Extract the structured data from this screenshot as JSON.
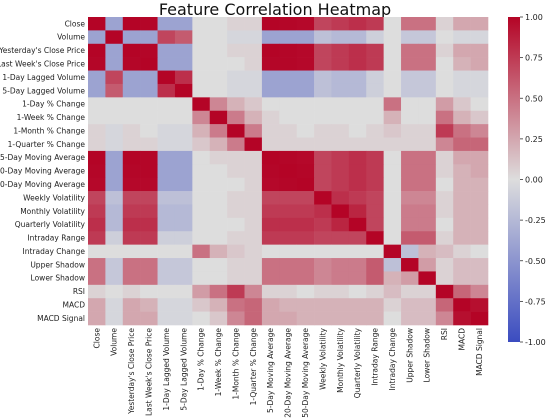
{
  "chart_data": {
    "type": "heatmap",
    "title": "Feature Correlation Heatmap",
    "labels": [
      "Close",
      "Volume",
      "Yesterday's Close Price",
      "Last Week's Close Price",
      "1-Day Lagged Volume",
      "5-Day Lagged Volume",
      "1-Day % Change",
      "1-Week % Change",
      "1-Month % Change",
      "1-Quarter % Change",
      "5-Day Moving Average",
      "20-Day Moving Average",
      "50-Day Moving Average",
      "Weekly Volatility",
      "Monthly Volatility",
      "Quarterly Volatility",
      "Intraday Range",
      "Intraday Change",
      "Upper Shadow",
      "Lower Shadow",
      "RSI",
      "MACD",
      "MACD Signal"
    ],
    "matrix": [
      [
        1.0,
        -0.4,
        1.0,
        0.99,
        -0.4,
        -0.4,
        0.0,
        0.0,
        0.05,
        0.05,
        1.0,
        0.99,
        0.98,
        0.7,
        0.75,
        0.8,
        0.75,
        0.0,
        0.5,
        0.5,
        0.05,
        0.25,
        0.25
      ],
      [
        -0.4,
        1.0,
        -0.4,
        -0.4,
        0.7,
        0.6,
        0.0,
        0.0,
        -0.05,
        -0.05,
        -0.4,
        -0.4,
        -0.4,
        -0.2,
        -0.25,
        -0.25,
        -0.1,
        0.0,
        -0.15,
        -0.15,
        0.0,
        -0.05,
        -0.05
      ],
      [
        1.0,
        -0.4,
        1.0,
        0.99,
        -0.4,
        -0.4,
        0.0,
        0.0,
        0.05,
        0.05,
        1.0,
        0.99,
        0.98,
        0.7,
        0.75,
        0.8,
        0.75,
        0.0,
        0.5,
        0.5,
        0.05,
        0.25,
        0.25
      ],
      [
        0.99,
        -0.4,
        0.99,
        1.0,
        -0.4,
        -0.4,
        0.0,
        0.0,
        0.0,
        0.05,
        0.99,
        0.99,
        0.98,
        0.7,
        0.75,
        0.8,
        0.75,
        0.0,
        0.5,
        0.5,
        0.0,
        0.2,
        0.25
      ],
      [
        -0.4,
        0.7,
        -0.4,
        -0.4,
        1.0,
        0.8,
        0.0,
        0.0,
        -0.05,
        -0.05,
        -0.4,
        -0.4,
        -0.4,
        -0.2,
        -0.25,
        -0.25,
        -0.1,
        0.0,
        -0.15,
        -0.15,
        0.0,
        -0.05,
        -0.05
      ],
      [
        -0.4,
        0.6,
        -0.4,
        -0.4,
        0.8,
        1.0,
        0.0,
        0.0,
        -0.05,
        -0.05,
        -0.4,
        -0.4,
        -0.4,
        -0.2,
        -0.25,
        -0.25,
        -0.1,
        0.0,
        -0.15,
        -0.15,
        0.0,
        -0.05,
        -0.05
      ],
      [
        0.0,
        0.0,
        0.0,
        0.0,
        0.0,
        0.0,
        1.0,
        0.4,
        0.2,
        0.1,
        0.0,
        0.0,
        0.0,
        0.0,
        0.0,
        0.0,
        0.0,
        0.5,
        0.0,
        0.0,
        0.3,
        0.1,
        0.0
      ],
      [
        0.0,
        0.0,
        0.0,
        0.0,
        0.0,
        0.0,
        0.4,
        1.0,
        0.45,
        0.2,
        0.05,
        0.0,
        0.0,
        0.0,
        0.0,
        0.0,
        0.0,
        0.2,
        0.0,
        0.0,
        0.5,
        0.2,
        0.1
      ],
      [
        0.05,
        -0.05,
        0.05,
        0.0,
        -0.05,
        -0.05,
        0.2,
        0.45,
        1.0,
        0.45,
        0.05,
        0.05,
        0.0,
        0.05,
        0.05,
        0.0,
        0.05,
        0.1,
        0.05,
        0.05,
        0.75,
        0.5,
        0.4
      ],
      [
        0.05,
        -0.05,
        0.05,
        0.05,
        -0.05,
        -0.05,
        0.1,
        0.2,
        0.45,
        1.0,
        0.05,
        0.05,
        0.05,
        0.05,
        0.05,
        0.05,
        0.05,
        0.05,
        0.05,
        0.05,
        0.4,
        0.55,
        0.55
      ],
      [
        1.0,
        -0.4,
        1.0,
        0.99,
        -0.4,
        -0.4,
        0.0,
        0.05,
        0.05,
        0.05,
        1.0,
        0.99,
        0.98,
        0.7,
        0.75,
        0.8,
        0.75,
        0.0,
        0.5,
        0.5,
        0.05,
        0.25,
        0.25
      ],
      [
        0.99,
        -0.4,
        0.99,
        0.99,
        -0.4,
        -0.4,
        0.0,
        0.0,
        0.05,
        0.05,
        0.99,
        1.0,
        0.99,
        0.7,
        0.75,
        0.8,
        0.75,
        0.0,
        0.5,
        0.5,
        0.05,
        0.2,
        0.25
      ],
      [
        0.98,
        -0.4,
        0.98,
        0.98,
        -0.4,
        -0.4,
        0.0,
        0.0,
        0.0,
        0.05,
        0.98,
        0.99,
        1.0,
        0.7,
        0.75,
        0.8,
        0.75,
        0.0,
        0.5,
        0.5,
        0.0,
        0.2,
        0.2
      ],
      [
        0.7,
        -0.2,
        0.7,
        0.7,
        -0.2,
        -0.2,
        0.0,
        0.0,
        0.05,
        0.05,
        0.7,
        0.7,
        0.7,
        1.0,
        0.8,
        0.75,
        0.7,
        0.0,
        0.4,
        0.4,
        0.05,
        0.2,
        0.2
      ],
      [
        0.75,
        -0.25,
        0.75,
        0.75,
        -0.25,
        -0.25,
        0.0,
        0.0,
        0.05,
        0.05,
        0.75,
        0.75,
        0.75,
        0.8,
        1.0,
        0.85,
        0.7,
        0.0,
        0.45,
        0.45,
        0.05,
        0.2,
        0.2
      ],
      [
        0.8,
        -0.25,
        0.8,
        0.8,
        -0.25,
        -0.25,
        0.0,
        0.0,
        0.0,
        0.05,
        0.8,
        0.8,
        0.8,
        0.75,
        0.85,
        1.0,
        0.7,
        0.0,
        0.45,
        0.45,
        0.0,
        0.2,
        0.2
      ],
      [
        0.75,
        -0.1,
        0.75,
        0.75,
        -0.1,
        -0.1,
        0.0,
        0.0,
        0.05,
        0.05,
        0.75,
        0.75,
        0.75,
        0.7,
        0.7,
        0.7,
        1.0,
        0.0,
        0.6,
        0.6,
        0.05,
        0.2,
        0.2
      ],
      [
        0.0,
        0.0,
        0.0,
        0.0,
        0.0,
        0.0,
        0.5,
        0.2,
        0.1,
        0.05,
        0.0,
        0.0,
        0.0,
        0.0,
        0.0,
        0.0,
        0.0,
        1.0,
        -0.2,
        0.2,
        0.15,
        0.05,
        0.0
      ],
      [
        0.5,
        -0.15,
        0.5,
        0.5,
        -0.15,
        -0.15,
        0.0,
        0.0,
        0.05,
        0.05,
        0.5,
        0.5,
        0.5,
        0.4,
        0.45,
        0.45,
        0.6,
        -0.2,
        1.0,
        0.3,
        0.05,
        0.15,
        0.15
      ],
      [
        0.5,
        -0.15,
        0.5,
        0.5,
        -0.15,
        -0.15,
        0.0,
        0.0,
        0.05,
        0.05,
        0.5,
        0.5,
        0.5,
        0.4,
        0.45,
        0.45,
        0.6,
        0.2,
        0.3,
        1.0,
        0.05,
        0.15,
        0.15
      ],
      [
        0.05,
        0.0,
        0.05,
        0.0,
        0.0,
        0.0,
        0.3,
        0.5,
        0.75,
        0.4,
        0.05,
        0.05,
        0.0,
        0.05,
        0.05,
        0.0,
        0.05,
        0.15,
        0.05,
        0.05,
        1.0,
        0.55,
        0.4
      ],
      [
        0.25,
        -0.05,
        0.25,
        0.2,
        -0.05,
        -0.05,
        0.1,
        0.2,
        0.5,
        0.55,
        0.25,
        0.2,
        0.2,
        0.2,
        0.2,
        0.2,
        0.2,
        0.05,
        0.15,
        0.15,
        0.55,
        1.0,
        0.95
      ],
      [
        0.25,
        -0.05,
        0.25,
        0.25,
        -0.05,
        -0.05,
        0.0,
        0.1,
        0.4,
        0.55,
        0.25,
        0.25,
        0.2,
        0.2,
        0.2,
        0.2,
        0.2,
        0.0,
        0.15,
        0.15,
        0.4,
        0.95,
        1.0
      ]
    ],
    "colorbar": {
      "min": -1.0,
      "max": 1.0,
      "ticks": [
        "1.00",
        "0.75",
        "0.50",
        "0.25",
        "0.00",
        "-0.25",
        "-0.50",
        "-0.75",
        "-1.00"
      ],
      "colormap": "coolwarm",
      "colors": {
        "low": "#3b4cc0",
        "mid": "#dddddd",
        "high": "#b40426"
      }
    },
    "grid": false
  }
}
